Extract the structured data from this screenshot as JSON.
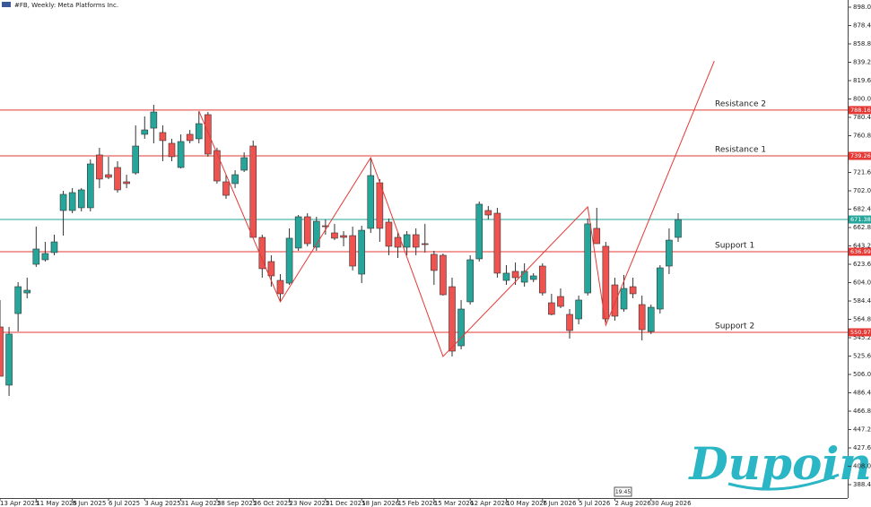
{
  "chart_data": {
    "type": "candlestick",
    "title": "#FB, Weekly: Meta Platforms Inc.",
    "up_color": "#26a69a",
    "down_color": "#ef5350",
    "level_color": "#e53935",
    "xlim": [
      0,
      93.75
    ],
    "ylim": [
      374.1,
      905.65
    ],
    "xticks": [
      {
        "value": 0,
        "label": "13 Apr 2025"
      },
      {
        "value": 4,
        "label": "11 May 2025"
      },
      {
        "value": 8,
        "label": "8 Jun 2025"
      },
      {
        "value": 12,
        "label": "6 Jul 2025"
      },
      {
        "value": 16,
        "label": "3 Aug 2025"
      },
      {
        "value": 20,
        "label": "31 Aug 2025"
      },
      {
        "value": 24,
        "label": "28 Sep 2025"
      },
      {
        "value": 28,
        "label": "26 Oct 2025"
      },
      {
        "value": 32,
        "label": "23 Nov 2025"
      },
      {
        "value": 36,
        "label": "21 Dec 2025"
      },
      {
        "value": 40,
        "label": "18 Jan 2026"
      },
      {
        "value": 44,
        "label": "15 Feb 2026"
      },
      {
        "value": 48,
        "label": "15 Mar 2026"
      },
      {
        "value": 52,
        "label": "12 Apr 2026"
      },
      {
        "value": 56,
        "label": "10 May 2026"
      },
      {
        "value": 60,
        "label": "7 Jun 2026"
      },
      {
        "value": 64,
        "label": "5 Jul 2026"
      },
      {
        "value": 68,
        "label": "2 Aug 2026"
      },
      {
        "value": 72,
        "label": "30 Aug 2026"
      }
    ],
    "yticks": [
      {
        "value": 898,
        "label": "898.00"
      },
      {
        "value": 878.4,
        "label": "878.40"
      },
      {
        "value": 858.8,
        "label": "858.80"
      },
      {
        "value": 839.2,
        "label": "839.20"
      },
      {
        "value": 819.6,
        "label": "819.60"
      },
      {
        "value": 800,
        "label": "800.00"
      },
      {
        "value": 780.4,
        "label": "780.40"
      },
      {
        "value": 760.8,
        "label": "760.80"
      },
      {
        "value": 721.6,
        "label": "721.60"
      },
      {
        "value": 702,
        "label": "702.00"
      },
      {
        "value": 682.4,
        "label": "682.40"
      },
      {
        "value": 662.8,
        "label": "662.80"
      },
      {
        "value": 643.2,
        "label": "643.20"
      },
      {
        "value": 623.6,
        "label": "623.60"
      },
      {
        "value": 604,
        "label": "604.00"
      },
      {
        "value": 584.4,
        "label": "584.40"
      },
      {
        "value": 564.8,
        "label": "564.80"
      },
      {
        "value": 545.2,
        "label": "545.20"
      },
      {
        "value": 525.6,
        "label": "525.60"
      },
      {
        "value": 506,
        "label": "506.00"
      },
      {
        "value": 486.4,
        "label": "486.40"
      },
      {
        "value": 466.8,
        "label": "466.80"
      },
      {
        "value": 447.2,
        "label": "447.20"
      },
      {
        "value": 427.6,
        "label": "427.60"
      },
      {
        "value": 408,
        "label": "408.00"
      },
      {
        "value": 388.4,
        "label": "388.40"
      }
    ],
    "candles": [
      {
        "open": 556.7,
        "high": 585.4,
        "low": 504.1,
        "close": 504.1
      },
      {
        "open": 494.6,
        "high": 556.7,
        "low": 483.1,
        "close": 549.1
      },
      {
        "open": 571.0,
        "high": 604.5,
        "low": 551.9,
        "close": 599.7
      },
      {
        "open": 593.0,
        "high": 609.3,
        "low": 587.3,
        "close": 595.9
      },
      {
        "open": 623.6,
        "high": 663.8,
        "low": 620.8,
        "close": 639.9
      },
      {
        "open": 628.4,
        "high": 647.5,
        "low": 626.5,
        "close": 635.1
      },
      {
        "open": 636.1,
        "high": 655.2,
        "low": 633.2,
        "close": 647.5
      },
      {
        "open": 681.0,
        "high": 702.0,
        "low": 654.2,
        "close": 698.2
      },
      {
        "open": 681.0,
        "high": 704.9,
        "low": 678.1,
        "close": 700.1
      },
      {
        "open": 683.9,
        "high": 704.9,
        "low": 680.0,
        "close": 703.0
      },
      {
        "open": 683.9,
        "high": 735.5,
        "low": 680.0,
        "close": 730.7
      },
      {
        "open": 740.3,
        "high": 747.9,
        "low": 704.9,
        "close": 714.5
      },
      {
        "open": 719.2,
        "high": 738.4,
        "low": 714.5,
        "close": 716.4
      },
      {
        "open": 726.9,
        "high": 733.6,
        "low": 700.1,
        "close": 703.0
      },
      {
        "open": 711.6,
        "high": 719.2,
        "low": 704.9,
        "close": 709.7
      },
      {
        "open": 721.1,
        "high": 771.8,
        "low": 719.2,
        "close": 749.8
      },
      {
        "open": 762.3,
        "high": 781.4,
        "low": 757.5,
        "close": 767.0
      },
      {
        "open": 768.9,
        "high": 793.8,
        "low": 752.7,
        "close": 786.1
      },
      {
        "open": 764.2,
        "high": 771.8,
        "low": 733.6,
        "close": 755.6
      },
      {
        "open": 752.7,
        "high": 757.5,
        "low": 733.6,
        "close": 738.4
      },
      {
        "open": 726.9,
        "high": 762.3,
        "low": 725.9,
        "close": 754.6
      },
      {
        "open": 762.3,
        "high": 767.0,
        "low": 752.7,
        "close": 755.6
      },
      {
        "open": 757.5,
        "high": 787.1,
        "low": 752.7,
        "close": 773.7
      },
      {
        "open": 783.3,
        "high": 786.1,
        "low": 738.4,
        "close": 741.2
      },
      {
        "open": 745.0,
        "high": 747.9,
        "low": 709.7,
        "close": 712.5
      },
      {
        "open": 711.6,
        "high": 719.2,
        "low": 693.4,
        "close": 697.2
      },
      {
        "open": 709.7,
        "high": 724.0,
        "low": 704.9,
        "close": 719.2
      },
      {
        "open": 724.0,
        "high": 743.1,
        "low": 722.1,
        "close": 737.4
      },
      {
        "open": 749.8,
        "high": 755.6,
        "low": 652.3,
        "close": 652.3
      },
      {
        "open": 652.3,
        "high": 655.2,
        "low": 609.3,
        "close": 618.9
      },
      {
        "open": 626.5,
        "high": 633.2,
        "low": 599.7,
        "close": 611.2
      },
      {
        "open": 606.4,
        "high": 613.1,
        "low": 584.4,
        "close": 592.1
      },
      {
        "open": 603.5,
        "high": 661.9,
        "low": 601.6,
        "close": 651.4
      },
      {
        "open": 640.9,
        "high": 676.2,
        "low": 638.0,
        "close": 674.3
      },
      {
        "open": 674.3,
        "high": 678.1,
        "low": 642.8,
        "close": 645.6
      },
      {
        "open": 641.8,
        "high": 674.3,
        "low": 638.0,
        "close": 669.5
      },
      {
        "open": 664.7,
        "high": 671.4,
        "low": 655.2,
        "close": 663.8
      },
      {
        "open": 657.1,
        "high": 666.7,
        "low": 649.4,
        "close": 651.4
      },
      {
        "open": 654.2,
        "high": 659.0,
        "low": 642.8,
        "close": 652.3
      },
      {
        "open": 654.2,
        "high": 663.8,
        "low": 617.0,
        "close": 621.7
      },
      {
        "open": 613.1,
        "high": 664.7,
        "low": 603.5,
        "close": 659.9
      },
      {
        "open": 661.9,
        "high": 737.4,
        "low": 657.1,
        "close": 718.3
      },
      {
        "open": 710.6,
        "high": 714.5,
        "low": 647.5,
        "close": 661.9
      },
      {
        "open": 668.6,
        "high": 672.4,
        "low": 633.2,
        "close": 642.8
      },
      {
        "open": 652.3,
        "high": 657.1,
        "low": 630.3,
        "close": 641.8
      },
      {
        "open": 641.8,
        "high": 659.0,
        "low": 633.2,
        "close": 655.2
      },
      {
        "open": 655.2,
        "high": 661.9,
        "low": 633.2,
        "close": 641.8
      },
      {
        "open": 645.6,
        "high": 666.7,
        "low": 636.1,
        "close": 644.7
      },
      {
        "open": 634.2,
        "high": 638.0,
        "low": 601.6,
        "close": 617.0
      },
      {
        "open": 633.2,
        "high": 635.1,
        "low": 590.2,
        "close": 591.1
      },
      {
        "open": 599.7,
        "high": 609.3,
        "low": 525.2,
        "close": 530.9
      },
      {
        "open": 536.6,
        "high": 585.4,
        "low": 532.8,
        "close": 575.8
      },
      {
        "open": 583.5,
        "high": 633.2,
        "low": 580.6,
        "close": 628.4
      },
      {
        "open": 629.4,
        "high": 690.6,
        "low": 626.5,
        "close": 687.7
      },
      {
        "open": 681.0,
        "high": 685.8,
        "low": 671.4,
        "close": 676.2
      },
      {
        "open": 678.1,
        "high": 683.9,
        "low": 609.3,
        "close": 614.1
      },
      {
        "open": 606.4,
        "high": 622.7,
        "low": 601.6,
        "close": 614.1
      },
      {
        "open": 616.0,
        "high": 625.5,
        "low": 601.6,
        "close": 609.3
      },
      {
        "open": 604.5,
        "high": 624.6,
        "low": 599.7,
        "close": 616.0
      },
      {
        "open": 607.4,
        "high": 614.1,
        "low": 604.5,
        "close": 611.2
      },
      {
        "open": 621.7,
        "high": 624.6,
        "low": 590.2,
        "close": 593.0
      },
      {
        "open": 582.5,
        "high": 592.1,
        "low": 569.1,
        "close": 570.1
      },
      {
        "open": 589.2,
        "high": 597.8,
        "low": 576.8,
        "close": 578.7
      },
      {
        "open": 570.1,
        "high": 575.8,
        "low": 544.3,
        "close": 552.9
      },
      {
        "open": 565.3,
        "high": 590.2,
        "low": 559.6,
        "close": 585.4
      },
      {
        "open": 593.0,
        "high": 672.4,
        "low": 590.2,
        "close": 666.7
      },
      {
        "open": 661.9,
        "high": 683.9,
        "low": 645.6,
        "close": 645.6
      },
      {
        "open": 642.8,
        "high": 647.5,
        "low": 561.5,
        "close": 565.3
      },
      {
        "open": 601.6,
        "high": 609.3,
        "low": 563.4,
        "close": 568.2
      },
      {
        "open": 575.8,
        "high": 612.2,
        "low": 573.0,
        "close": 597.8
      },
      {
        "open": 599.7,
        "high": 609.3,
        "low": 587.3,
        "close": 592.1
      },
      {
        "open": 580.6,
        "high": 590.2,
        "low": 542.4,
        "close": 553.8
      },
      {
        "open": 551.9,
        "high": 580.6,
        "low": 549.1,
        "close": 577.7
      },
      {
        "open": 575.8,
        "high": 622.7,
        "low": 571.0,
        "close": 619.8
      },
      {
        "open": 621.7,
        "high": 661.9,
        "low": 613.1,
        "close": 649.4
      },
      {
        "open": 652.3,
        "high": 678.1,
        "low": 647.5,
        "close": 671.4
      }
    ],
    "levels": [
      {
        "name": "Resistance 2",
        "value": 788.16
      },
      {
        "name": "Resistance 1",
        "value": 739.26
      },
      {
        "name": "Support 1",
        "value": 636.99
      },
      {
        "name": "Support 2",
        "value": 550.97
      }
    ],
    "current_price": {
      "value": 671.38,
      "color": "#26a69a"
    },
    "zigzag": {
      "x": [
        22,
        31,
        41,
        49,
        65,
        67,
        79
      ],
      "values": [
        787.1,
        583.5,
        737.4,
        525.2,
        684.8,
        558.6,
        840.6
      ]
    },
    "time_badge": "19:45",
    "logo": "Dupoin"
  }
}
